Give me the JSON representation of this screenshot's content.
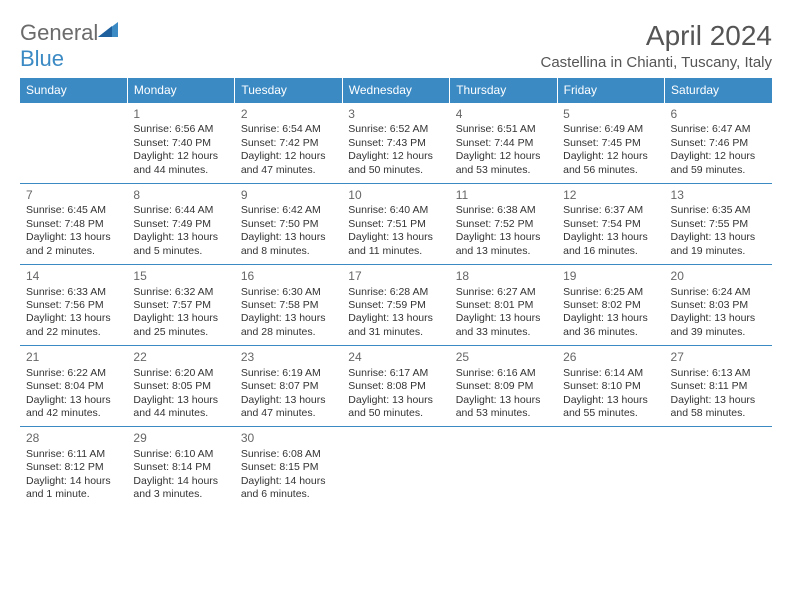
{
  "brand": {
    "name_part1": "General",
    "name_part2": "Blue"
  },
  "header": {
    "month_title": "April 2024",
    "location": "Castellina in Chianti, Tuscany, Italy"
  },
  "calendar": {
    "day_headers": [
      "Sunday",
      "Monday",
      "Tuesday",
      "Wednesday",
      "Thursday",
      "Friday",
      "Saturday"
    ],
    "colors": {
      "header_bg": "#3b8ac4",
      "header_fg": "#ffffff",
      "cell_border": "#3b8ac4",
      "text": "#333333",
      "muted": "#666666"
    },
    "weeks": [
      [
        null,
        {
          "n": "1",
          "sr": "Sunrise: 6:56 AM",
          "ss": "Sunset: 7:40 PM",
          "dl": "Daylight: 12 hours and 44 minutes."
        },
        {
          "n": "2",
          "sr": "Sunrise: 6:54 AM",
          "ss": "Sunset: 7:42 PM",
          "dl": "Daylight: 12 hours and 47 minutes."
        },
        {
          "n": "3",
          "sr": "Sunrise: 6:52 AM",
          "ss": "Sunset: 7:43 PM",
          "dl": "Daylight: 12 hours and 50 minutes."
        },
        {
          "n": "4",
          "sr": "Sunrise: 6:51 AM",
          "ss": "Sunset: 7:44 PM",
          "dl": "Daylight: 12 hours and 53 minutes."
        },
        {
          "n": "5",
          "sr": "Sunrise: 6:49 AM",
          "ss": "Sunset: 7:45 PM",
          "dl": "Daylight: 12 hours and 56 minutes."
        },
        {
          "n": "6",
          "sr": "Sunrise: 6:47 AM",
          "ss": "Sunset: 7:46 PM",
          "dl": "Daylight: 12 hours and 59 minutes."
        }
      ],
      [
        {
          "n": "7",
          "sr": "Sunrise: 6:45 AM",
          "ss": "Sunset: 7:48 PM",
          "dl": "Daylight: 13 hours and 2 minutes."
        },
        {
          "n": "8",
          "sr": "Sunrise: 6:44 AM",
          "ss": "Sunset: 7:49 PM",
          "dl": "Daylight: 13 hours and 5 minutes."
        },
        {
          "n": "9",
          "sr": "Sunrise: 6:42 AM",
          "ss": "Sunset: 7:50 PM",
          "dl": "Daylight: 13 hours and 8 minutes."
        },
        {
          "n": "10",
          "sr": "Sunrise: 6:40 AM",
          "ss": "Sunset: 7:51 PM",
          "dl": "Daylight: 13 hours and 11 minutes."
        },
        {
          "n": "11",
          "sr": "Sunrise: 6:38 AM",
          "ss": "Sunset: 7:52 PM",
          "dl": "Daylight: 13 hours and 13 minutes."
        },
        {
          "n": "12",
          "sr": "Sunrise: 6:37 AM",
          "ss": "Sunset: 7:54 PM",
          "dl": "Daylight: 13 hours and 16 minutes."
        },
        {
          "n": "13",
          "sr": "Sunrise: 6:35 AM",
          "ss": "Sunset: 7:55 PM",
          "dl": "Daylight: 13 hours and 19 minutes."
        }
      ],
      [
        {
          "n": "14",
          "sr": "Sunrise: 6:33 AM",
          "ss": "Sunset: 7:56 PM",
          "dl": "Daylight: 13 hours and 22 minutes."
        },
        {
          "n": "15",
          "sr": "Sunrise: 6:32 AM",
          "ss": "Sunset: 7:57 PM",
          "dl": "Daylight: 13 hours and 25 minutes."
        },
        {
          "n": "16",
          "sr": "Sunrise: 6:30 AM",
          "ss": "Sunset: 7:58 PM",
          "dl": "Daylight: 13 hours and 28 minutes."
        },
        {
          "n": "17",
          "sr": "Sunrise: 6:28 AM",
          "ss": "Sunset: 7:59 PM",
          "dl": "Daylight: 13 hours and 31 minutes."
        },
        {
          "n": "18",
          "sr": "Sunrise: 6:27 AM",
          "ss": "Sunset: 8:01 PM",
          "dl": "Daylight: 13 hours and 33 minutes."
        },
        {
          "n": "19",
          "sr": "Sunrise: 6:25 AM",
          "ss": "Sunset: 8:02 PM",
          "dl": "Daylight: 13 hours and 36 minutes."
        },
        {
          "n": "20",
          "sr": "Sunrise: 6:24 AM",
          "ss": "Sunset: 8:03 PM",
          "dl": "Daylight: 13 hours and 39 minutes."
        }
      ],
      [
        {
          "n": "21",
          "sr": "Sunrise: 6:22 AM",
          "ss": "Sunset: 8:04 PM",
          "dl": "Daylight: 13 hours and 42 minutes."
        },
        {
          "n": "22",
          "sr": "Sunrise: 6:20 AM",
          "ss": "Sunset: 8:05 PM",
          "dl": "Daylight: 13 hours and 44 minutes."
        },
        {
          "n": "23",
          "sr": "Sunrise: 6:19 AM",
          "ss": "Sunset: 8:07 PM",
          "dl": "Daylight: 13 hours and 47 minutes."
        },
        {
          "n": "24",
          "sr": "Sunrise: 6:17 AM",
          "ss": "Sunset: 8:08 PM",
          "dl": "Daylight: 13 hours and 50 minutes."
        },
        {
          "n": "25",
          "sr": "Sunrise: 6:16 AM",
          "ss": "Sunset: 8:09 PM",
          "dl": "Daylight: 13 hours and 53 minutes."
        },
        {
          "n": "26",
          "sr": "Sunrise: 6:14 AM",
          "ss": "Sunset: 8:10 PM",
          "dl": "Daylight: 13 hours and 55 minutes."
        },
        {
          "n": "27",
          "sr": "Sunrise: 6:13 AM",
          "ss": "Sunset: 8:11 PM",
          "dl": "Daylight: 13 hours and 58 minutes."
        }
      ],
      [
        {
          "n": "28",
          "sr": "Sunrise: 6:11 AM",
          "ss": "Sunset: 8:12 PM",
          "dl": "Daylight: 14 hours and 1 minute."
        },
        {
          "n": "29",
          "sr": "Sunrise: 6:10 AM",
          "ss": "Sunset: 8:14 PM",
          "dl": "Daylight: 14 hours and 3 minutes."
        },
        {
          "n": "30",
          "sr": "Sunrise: 6:08 AM",
          "ss": "Sunset: 8:15 PM",
          "dl": "Daylight: 14 hours and 6 minutes."
        },
        null,
        null,
        null,
        null
      ]
    ]
  }
}
